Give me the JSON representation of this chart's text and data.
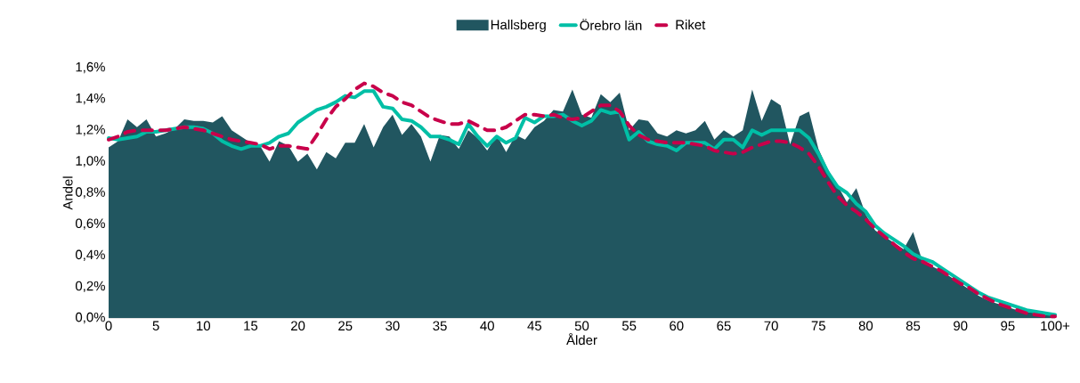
{
  "chart_data": {
    "type": "line",
    "xlabel": "Ålder",
    "ylabel": "Andel",
    "categories": [
      "0",
      null,
      null,
      null,
      null,
      "5",
      null,
      null,
      null,
      null,
      "10",
      null,
      null,
      null,
      null,
      "15",
      null,
      null,
      null,
      null,
      "20",
      null,
      null,
      null,
      null,
      "25",
      null,
      null,
      null,
      null,
      "30",
      null,
      null,
      null,
      null,
      "35",
      null,
      null,
      null,
      null,
      "40",
      null,
      null,
      null,
      null,
      "45",
      null,
      null,
      null,
      null,
      "50",
      null,
      null,
      null,
      null,
      "55",
      null,
      null,
      null,
      null,
      "60",
      null,
      null,
      null,
      null,
      "65",
      null,
      null,
      null,
      null,
      "70",
      null,
      null,
      null,
      null,
      "75",
      null,
      null,
      null,
      null,
      "80",
      null,
      null,
      null,
      null,
      "85",
      null,
      null,
      null,
      null,
      "90",
      null,
      null,
      null,
      null,
      "95",
      null,
      null,
      null,
      null,
      "100+"
    ],
    "series": [
      {
        "name": "Hallsberg",
        "type": "area",
        "color": "#215660",
        "values": [
          1.09,
          1.13,
          1.27,
          1.22,
          1.27,
          1.16,
          1.18,
          1.21,
          1.27,
          1.26,
          1.26,
          1.25,
          1.29,
          1.2,
          1.16,
          1.12,
          1.1,
          1.0,
          1.13,
          1.1,
          1.0,
          1.05,
          0.95,
          1.06,
          1.02,
          1.12,
          1.12,
          1.24,
          1.09,
          1.22,
          1.3,
          1.17,
          1.24,
          1.16,
          1.0,
          1.17,
          1.16,
          1.08,
          1.2,
          1.15,
          1.07,
          1.17,
          1.06,
          1.17,
          1.14,
          1.22,
          1.26,
          1.33,
          1.32,
          1.46,
          1.3,
          1.28,
          1.43,
          1.38,
          1.44,
          1.2,
          1.27,
          1.26,
          1.18,
          1.16,
          1.2,
          1.18,
          1.2,
          1.26,
          1.14,
          1.2,
          1.16,
          1.2,
          1.46,
          1.26,
          1.4,
          1.36,
          1.11,
          1.29,
          1.32,
          1.08,
          0.95,
          0.85,
          0.74,
          0.83,
          0.66,
          0.56,
          0.52,
          0.48,
          0.44,
          0.55,
          0.36,
          0.33,
          0.3,
          0.26,
          0.22,
          0.18,
          0.14,
          0.11,
          0.09,
          0.07,
          0.05,
          0.04,
          0.03,
          0.02,
          0.02
        ]
      },
      {
        "name": "Örebro län",
        "line_style": "solid",
        "color": "#00bfa6",
        "values": [
          1.15,
          1.14,
          1.15,
          1.16,
          1.19,
          1.19,
          1.2,
          1.21,
          1.22,
          1.22,
          1.21,
          1.18,
          1.13,
          1.1,
          1.08,
          1.1,
          1.1,
          1.12,
          1.16,
          1.18,
          1.25,
          1.29,
          1.33,
          1.35,
          1.38,
          1.42,
          1.41,
          1.45,
          1.45,
          1.35,
          1.34,
          1.27,
          1.26,
          1.22,
          1.16,
          1.16,
          1.14,
          1.11,
          1.24,
          1.16,
          1.1,
          1.16,
          1.12,
          1.15,
          1.28,
          1.25,
          1.29,
          1.29,
          1.3,
          1.26,
          1.23,
          1.26,
          1.33,
          1.31,
          1.32,
          1.14,
          1.19,
          1.13,
          1.11,
          1.1,
          1.07,
          1.12,
          1.12,
          1.12,
          1.08,
          1.14,
          1.14,
          1.09,
          1.2,
          1.17,
          1.2,
          1.2,
          1.2,
          1.2,
          1.15,
          1.05,
          0.93,
          0.84,
          0.8,
          0.73,
          0.68,
          0.59,
          0.54,
          0.5,
          0.46,
          0.41,
          0.38,
          0.36,
          0.32,
          0.28,
          0.24,
          0.2,
          0.16,
          0.13,
          0.11,
          0.09,
          0.07,
          0.05,
          0.04,
          0.03,
          0.02
        ]
      },
      {
        "name": "Riket",
        "line_style": "dashed",
        "color": "#c8004a",
        "values": [
          1.14,
          1.16,
          1.19,
          1.2,
          1.2,
          1.2,
          1.2,
          1.21,
          1.22,
          1.21,
          1.2,
          1.18,
          1.16,
          1.14,
          1.13,
          1.12,
          1.11,
          1.08,
          1.1,
          1.1,
          1.09,
          1.08,
          1.17,
          1.27,
          1.35,
          1.4,
          1.46,
          1.5,
          1.48,
          1.44,
          1.42,
          1.38,
          1.36,
          1.32,
          1.28,
          1.26,
          1.24,
          1.24,
          1.26,
          1.23,
          1.2,
          1.2,
          1.22,
          1.26,
          1.3,
          1.3,
          1.29,
          1.3,
          1.28,
          1.27,
          1.28,
          1.32,
          1.36,
          1.36,
          1.32,
          1.23,
          1.17,
          1.14,
          1.13,
          1.12,
          1.12,
          1.12,
          1.11,
          1.1,
          1.07,
          1.06,
          1.05,
          1.06,
          1.09,
          1.11,
          1.13,
          1.13,
          1.12,
          1.09,
          1.05,
          0.97,
          0.87,
          0.78,
          0.72,
          0.68,
          0.63,
          0.57,
          0.52,
          0.47,
          0.42,
          0.38,
          0.36,
          0.33,
          0.3,
          0.26,
          0.22,
          0.19,
          0.15,
          0.12,
          0.09,
          0.07,
          0.05,
          0.03,
          0.02,
          0.01,
          0.01
        ]
      }
    ],
    "ylim": [
      0,
      1.6
    ],
    "yticks": [
      {
        "value": 0,
        "label": "0,0%"
      },
      {
        "value": 0.2,
        "label": "0,2%"
      },
      {
        "value": 0.4,
        "label": "0,4%"
      },
      {
        "value": 0.6,
        "label": "0,6%"
      },
      {
        "value": 0.8,
        "label": "0,8%"
      },
      {
        "value": 1.0,
        "label": "1,0%"
      },
      {
        "value": 1.2,
        "label": "1,2%"
      },
      {
        "value": 1.4,
        "label": "1,4%"
      },
      {
        "value": 1.6,
        "label": "1,6%"
      }
    ],
    "legend": "top",
    "grid": false
  }
}
